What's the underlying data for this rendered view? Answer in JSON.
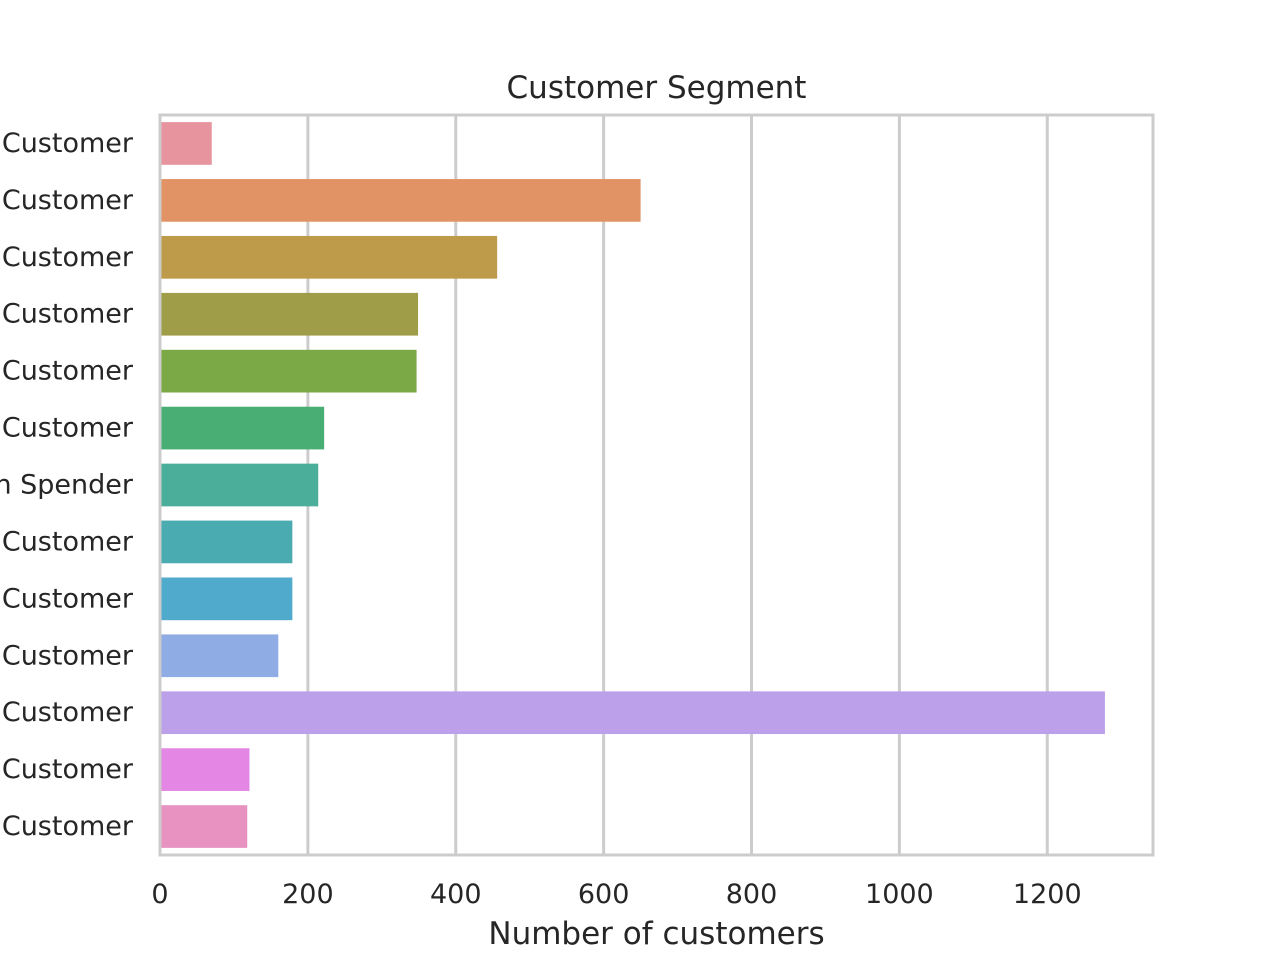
{
  "chart_data": {
    "type": "bar",
    "orientation": "horizontal",
    "title": "Customer Segment",
    "xlabel": "Number of customers",
    "ylabel": "",
    "xlim": [
      0,
      1343
    ],
    "xticks": [
      0,
      200,
      400,
      600,
      800,
      1000,
      1200
    ],
    "grid": true,
    "legend": "none",
    "categories": [
      "Customer",
      "Customer",
      "Customer",
      "Customer",
      "Customer",
      "Customer",
      "n Spender",
      "Customer",
      "Customer",
      "Customer",
      "Customer",
      "Customer",
      "Customer"
    ],
    "values": [
      70,
      650,
      456,
      349,
      347,
      222,
      214,
      179,
      179,
      160,
      1278,
      121,
      118
    ],
    "colors": [
      "#e8949f",
      "#e29365",
      "#be9a4b",
      "#a09d48",
      "#7aa946",
      "#49ae73",
      "#4aae9b",
      "#4aabb0",
      "#50aacc",
      "#90ace4",
      "#bca1ea",
      "#e486e4",
      "#e892c2"
    ]
  }
}
